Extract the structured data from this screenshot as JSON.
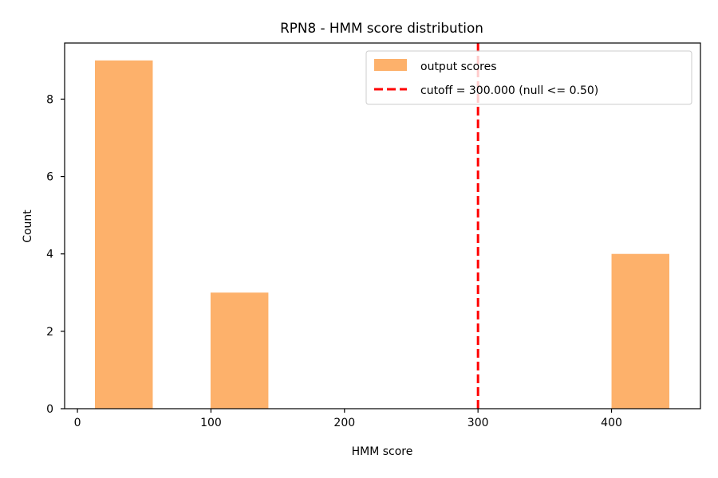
{
  "chart_data": {
    "type": "bar",
    "title": "RPN8 - HMM score distribution",
    "xlabel": "HMM score",
    "ylabel": "Count",
    "xlim": [
      -9.6,
      466.6
    ],
    "ylim": [
      0,
      9.45
    ],
    "xticks": [
      0,
      100,
      200,
      300,
      400
    ],
    "yticks": [
      0,
      2,
      4,
      6,
      8
    ],
    "bins": [
      {
        "x0": 13.1,
        "x1": 56.4,
        "count": 9
      },
      {
        "x0": 99.7,
        "x1": 143.0,
        "count": 3
      },
      {
        "x0": 400.0,
        "x1": 443.3,
        "count": 4
      }
    ],
    "series": [
      {
        "name": "output scores",
        "color": "#fdb16b"
      }
    ],
    "cutoff": {
      "x": 300,
      "label": "cutoff = 300.000 (null <= 0.50)",
      "color": "#ff0000",
      "style": "dashed"
    },
    "legend_position": "top-right",
    "grid": false
  }
}
